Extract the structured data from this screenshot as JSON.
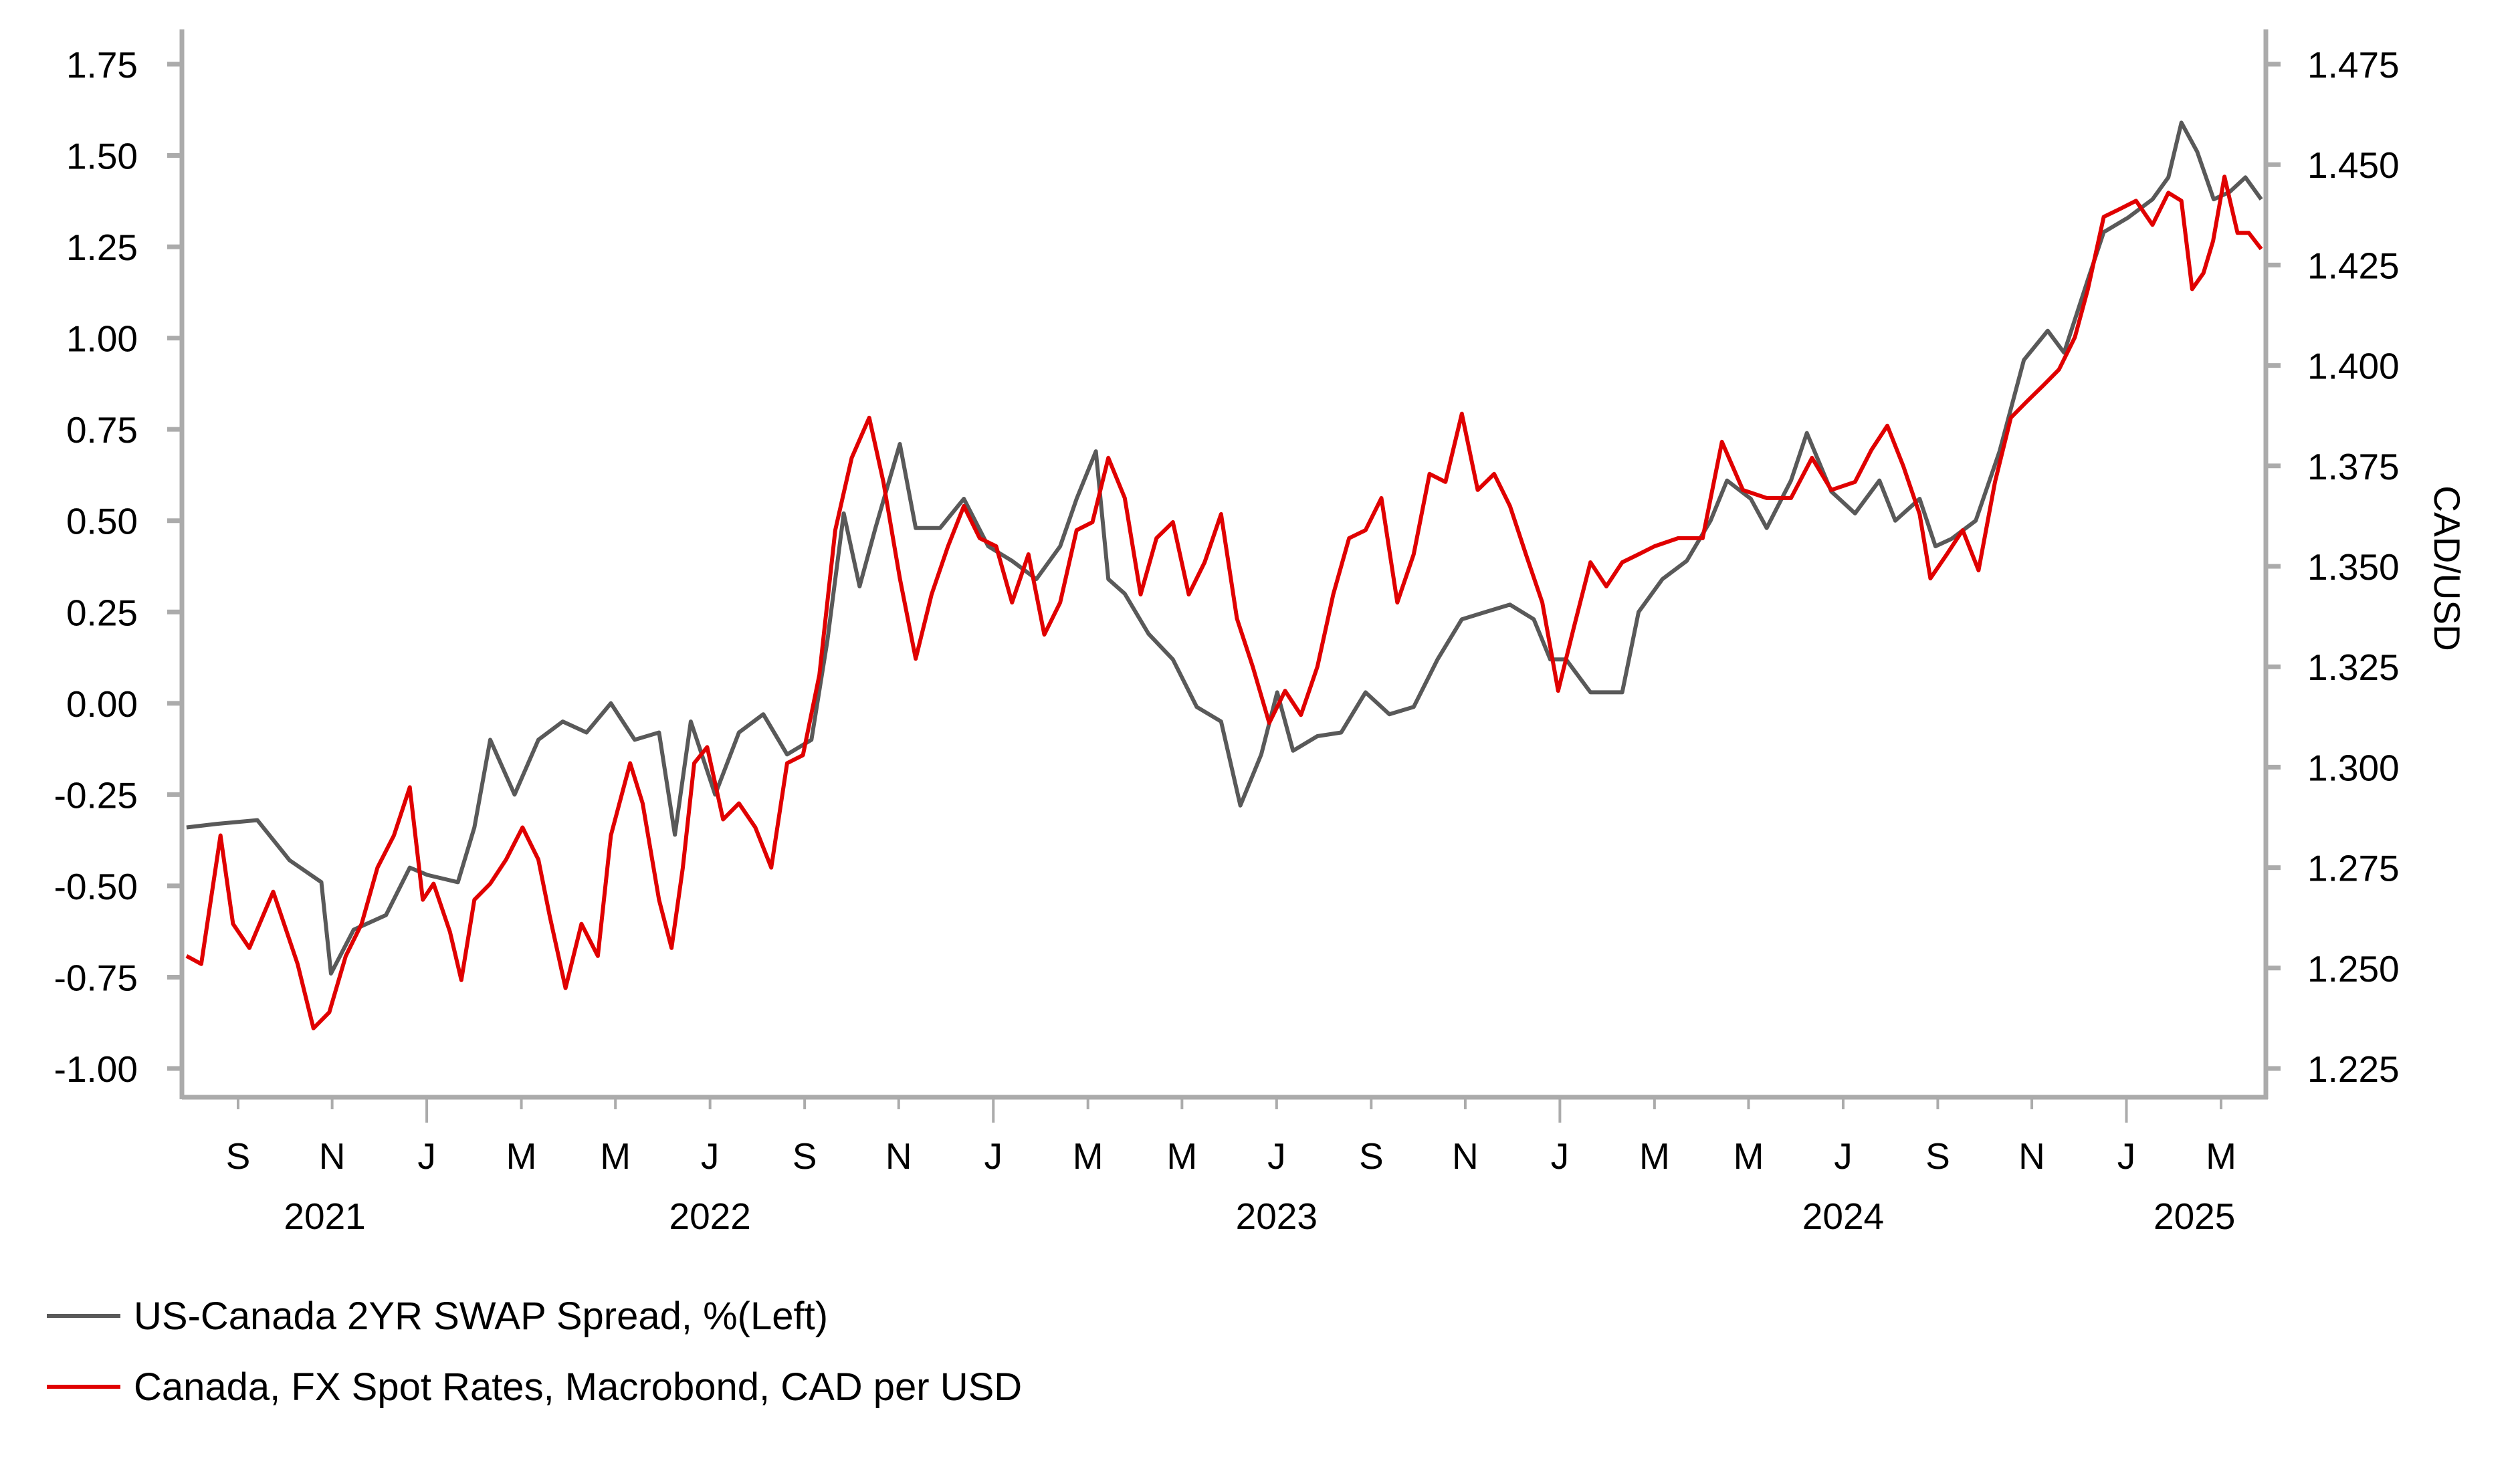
{
  "chart_data": {
    "type": "line",
    "title": "",
    "xlabel": "",
    "ylabel_left": "",
    "ylabel_right": "CAD/USD",
    "x_unit": "decimal year",
    "xlim": [
      2021.57,
      2025.25
    ],
    "ylim_left": [
      -1.08,
      1.85
    ],
    "ylim_right": [
      1.217,
      1.4845
    ],
    "y_ticks_left": [
      "1.75",
      "1.50",
      "1.25",
      "1.00",
      "0.75",
      "0.50",
      "0.25",
      "0.00",
      "-0.25",
      "-0.50",
      "-0.75",
      "-1.00"
    ],
    "y_ticks_left_values": [
      1.75,
      1.5,
      1.25,
      1.0,
      0.75,
      0.5,
      0.25,
      0.0,
      -0.25,
      -0.5,
      -0.75,
      -1.0
    ],
    "y_ticks_right": [
      "1.475",
      "1.450",
      "1.425",
      "1.400",
      "1.375",
      "1.350",
      "1.325",
      "1.300",
      "1.275",
      "1.250",
      "1.225"
    ],
    "y_ticks_right_values": [
      1.475,
      1.45,
      1.425,
      1.4,
      1.375,
      1.35,
      1.325,
      1.3,
      1.275,
      1.25,
      1.225
    ],
    "x_month_ticks": [
      {
        "label": "S",
        "t": 2021.667,
        "major": false
      },
      {
        "label": "N",
        "t": 2021.833,
        "major": false
      },
      {
        "label": "J",
        "t": 2022.0,
        "major": true
      },
      {
        "label": "M",
        "t": 2022.167,
        "major": false
      },
      {
        "label": "M",
        "t": 2022.333,
        "major": false
      },
      {
        "label": "J",
        "t": 2022.5,
        "major": false
      },
      {
        "label": "S",
        "t": 2022.667,
        "major": false
      },
      {
        "label": "N",
        "t": 2022.833,
        "major": false
      },
      {
        "label": "J",
        "t": 2023.0,
        "major": true
      },
      {
        "label": "M",
        "t": 2023.167,
        "major": false
      },
      {
        "label": "M",
        "t": 2023.333,
        "major": false
      },
      {
        "label": "J",
        "t": 2023.5,
        "major": false
      },
      {
        "label": "S",
        "t": 2023.667,
        "major": false
      },
      {
        "label": "N",
        "t": 2023.833,
        "major": false
      },
      {
        "label": "J",
        "t": 2024.0,
        "major": true
      },
      {
        "label": "M",
        "t": 2024.167,
        "major": false
      },
      {
        "label": "M",
        "t": 2024.333,
        "major": false
      },
      {
        "label": "J",
        "t": 2024.5,
        "major": false
      },
      {
        "label": "S",
        "t": 2024.667,
        "major": false
      },
      {
        "label": "N",
        "t": 2024.833,
        "major": false
      },
      {
        "label": "J",
        "t": 2025.0,
        "major": true
      },
      {
        "label": "M",
        "t": 2025.167,
        "major": false
      }
    ],
    "x_year_labels": [
      {
        "label": "2021",
        "t": 2021.82
      },
      {
        "label": "2022",
        "t": 2022.5
      },
      {
        "label": "2023",
        "t": 2023.5
      },
      {
        "label": "2024",
        "t": 2024.5
      },
      {
        "label": "2025",
        "t": 2025.12
      }
    ],
    "grid": false,
    "legend_position": "bottom-left",
    "series": [
      {
        "name": "US-Canada 2YR SWAP Spread, %(Left)",
        "axis": "left",
        "color": "#595959",
        "points": [
          [
            2021.576,
            -0.34
          ],
          [
            2021.63,
            -0.33
          ],
          [
            2021.701,
            -0.32
          ],
          [
            2021.758,
            -0.43
          ],
          [
            2021.814,
            -0.49
          ],
          [
            2021.831,
            -0.74
          ],
          [
            2021.871,
            -0.62
          ],
          [
            2021.928,
            -0.58
          ],
          [
            2021.97,
            -0.45
          ],
          [
            2022.001,
            -0.47
          ],
          [
            2022.055,
            -0.49
          ],
          [
            2022.084,
            -0.34
          ],
          [
            2022.112,
            -0.1
          ],
          [
            2022.155,
            -0.25
          ],
          [
            2022.197,
            -0.1
          ],
          [
            2022.24,
            -0.05
          ],
          [
            2022.282,
            -0.08
          ],
          [
            2022.325,
            0.0
          ],
          [
            2022.367,
            -0.1
          ],
          [
            2022.41,
            -0.08
          ],
          [
            2022.438,
            -0.36
          ],
          [
            2022.466,
            -0.05
          ],
          [
            2022.509,
            -0.25
          ],
          [
            2022.551,
            -0.08
          ],
          [
            2022.594,
            -0.03
          ],
          [
            2022.636,
            -0.14
          ],
          [
            2022.679,
            -0.1
          ],
          [
            2022.707,
            0.17
          ],
          [
            2022.736,
            0.52
          ],
          [
            2022.764,
            0.32
          ],
          [
            2022.792,
            0.48
          ],
          [
            2022.835,
            0.71
          ],
          [
            2022.863,
            0.48
          ],
          [
            2022.906,
            0.48
          ],
          [
            2022.948,
            0.56
          ],
          [
            2022.991,
            0.43
          ],
          [
            2023.033,
            0.39
          ],
          [
            2023.076,
            0.34
          ],
          [
            2023.118,
            0.43
          ],
          [
            2023.147,
            0.56
          ],
          [
            2023.181,
            0.69
          ],
          [
            2023.203,
            0.34
          ],
          [
            2023.232,
            0.3
          ],
          [
            2023.274,
            0.19
          ],
          [
            2023.317,
            0.12
          ],
          [
            2023.359,
            -0.01
          ],
          [
            2023.402,
            -0.05
          ],
          [
            2023.436,
            -0.28
          ],
          [
            2023.473,
            -0.14
          ],
          [
            2023.501,
            0.03
          ],
          [
            2023.529,
            -0.13
          ],
          [
            2023.572,
            -0.09
          ],
          [
            2023.614,
            -0.08
          ],
          [
            2023.657,
            0.03
          ],
          [
            2023.699,
            -0.03
          ],
          [
            2023.742,
            -0.01
          ],
          [
            2023.784,
            0.12
          ],
          [
            2023.827,
            0.23
          ],
          [
            2023.869,
            0.25
          ],
          [
            2023.912,
            0.27
          ],
          [
            2023.954,
            0.23
          ],
          [
            2023.983,
            0.12
          ],
          [
            2024.011,
            0.12
          ],
          [
            2024.054,
            0.03
          ],
          [
            2024.11,
            0.03
          ],
          [
            2024.139,
            0.25
          ],
          [
            2024.181,
            0.34
          ],
          [
            2024.224,
            0.39
          ],
          [
            2024.266,
            0.5
          ],
          [
            2024.295,
            0.61
          ],
          [
            2024.337,
            0.56
          ],
          [
            2024.365,
            0.48
          ],
          [
            2024.408,
            0.61
          ],
          [
            2024.436,
            0.74
          ],
          [
            2024.479,
            0.58
          ],
          [
            2024.521,
            0.52
          ],
          [
            2024.564,
            0.61
          ],
          [
            2024.592,
            0.5
          ],
          [
            2024.635,
            0.56
          ],
          [
            2024.663,
            0.43
          ],
          [
            2024.691,
            0.45
          ],
          [
            2024.734,
            0.5
          ],
          [
            2024.776,
            0.69
          ],
          [
            2024.819,
            0.94
          ],
          [
            2024.861,
            1.02
          ],
          [
            2024.89,
            0.96
          ],
          [
            2024.932,
            1.16
          ],
          [
            2024.96,
            1.29
          ],
          [
            2025.003,
            1.33
          ],
          [
            2025.046,
            1.38
          ],
          [
            2025.074,
            1.44
          ],
          [
            2025.097,
            1.59
          ],
          [
            2025.125,
            1.51
          ],
          [
            2025.154,
            1.38
          ],
          [
            2025.182,
            1.4
          ],
          [
            2025.21,
            1.44
          ],
          [
            2025.238,
            1.38
          ]
        ]
      },
      {
        "name": "Canada, FX Spot Rates, Macrobond, CAD per USD",
        "axis": "right",
        "color": "#e00000",
        "points": [
          [
            2021.576,
            1.253
          ],
          [
            2021.602,
            1.251
          ],
          [
            2021.636,
            1.283
          ],
          [
            2021.658,
            1.261
          ],
          [
            2021.687,
            1.255
          ],
          [
            2021.729,
            1.269
          ],
          [
            2021.772,
            1.251
          ],
          [
            2021.8,
            1.235
          ],
          [
            2021.828,
            1.239
          ],
          [
            2021.857,
            1.253
          ],
          [
            2021.885,
            1.261
          ],
          [
            2021.913,
            1.275
          ],
          [
            2021.942,
            1.283
          ],
          [
            2021.97,
            1.295
          ],
          [
            2021.993,
            1.267
          ],
          [
            2022.012,
            1.271
          ],
          [
            2022.041,
            1.259
          ],
          [
            2022.061,
            1.247
          ],
          [
            2022.084,
            1.267
          ],
          [
            2022.112,
            1.271
          ],
          [
            2022.14,
            1.277
          ],
          [
            2022.169,
            1.285
          ],
          [
            2022.197,
            1.277
          ],
          [
            2022.217,
            1.263
          ],
          [
            2022.245,
            1.245
          ],
          [
            2022.273,
            1.261
          ],
          [
            2022.302,
            1.253
          ],
          [
            2022.325,
            1.283
          ],
          [
            2022.359,
            1.301
          ],
          [
            2022.381,
            1.291
          ],
          [
            2022.41,
            1.267
          ],
          [
            2022.432,
            1.255
          ],
          [
            2022.452,
            1.275
          ],
          [
            2022.472,
            1.301
          ],
          [
            2022.495,
            1.305
          ],
          [
            2022.523,
            1.287
          ],
          [
            2022.551,
            1.291
          ],
          [
            2022.58,
            1.285
          ],
          [
            2022.608,
            1.275
          ],
          [
            2022.636,
            1.301
          ],
          [
            2022.664,
            1.303
          ],
          [
            2022.693,
            1.323
          ],
          [
            2022.721,
            1.359
          ],
          [
            2022.75,
            1.377
          ],
          [
            2022.781,
            1.387
          ],
          [
            2022.806,
            1.371
          ],
          [
            2022.835,
            1.347
          ],
          [
            2022.863,
            1.327
          ],
          [
            2022.891,
            1.343
          ],
          [
            2022.92,
            1.355
          ],
          [
            2022.948,
            1.365
          ],
          [
            2022.976,
            1.357
          ],
          [
            2023.005,
            1.355
          ],
          [
            2023.033,
            1.341
          ],
          [
            2023.062,
            1.353
          ],
          [
            2023.09,
            1.333
          ],
          [
            2023.118,
            1.341
          ],
          [
            2023.147,
            1.359
          ],
          [
            2023.175,
            1.361
          ],
          [
            2023.203,
            1.377
          ],
          [
            2023.232,
            1.367
          ],
          [
            2023.26,
            1.343
          ],
          [
            2023.288,
            1.357
          ],
          [
            2023.317,
            1.361
          ],
          [
            2023.345,
            1.343
          ],
          [
            2023.373,
            1.351
          ],
          [
            2023.402,
            1.363
          ],
          [
            2023.43,
            1.337
          ],
          [
            2023.458,
            1.325
          ],
          [
            2023.487,
            1.311
          ],
          [
            2023.515,
            1.319
          ],
          [
            2023.543,
            1.313
          ],
          [
            2023.572,
            1.325
          ],
          [
            2023.6,
            1.343
          ],
          [
            2023.628,
            1.357
          ],
          [
            2023.657,
            1.359
          ],
          [
            2023.685,
            1.367
          ],
          [
            2023.713,
            1.341
          ],
          [
            2023.742,
            1.353
          ],
          [
            2023.77,
            1.373
          ],
          [
            2023.798,
            1.371
          ],
          [
            2023.827,
            1.388
          ],
          [
            2023.855,
            1.369
          ],
          [
            2023.884,
            1.373
          ],
          [
            2023.912,
            1.365
          ],
          [
            2023.94,
            1.353
          ],
          [
            2023.969,
            1.341
          ],
          [
            2023.997,
            1.319
          ],
          [
            2024.025,
            1.335
          ],
          [
            2024.054,
            1.351
          ],
          [
            2024.082,
            1.345
          ],
          [
            2024.11,
            1.351
          ],
          [
            2024.139,
            1.353
          ],
          [
            2024.167,
            1.355
          ],
          [
            2024.209,
            1.357
          ],
          [
            2024.252,
            1.357
          ],
          [
            2024.286,
            1.381
          ],
          [
            2024.323,
            1.369
          ],
          [
            2024.365,
            1.367
          ],
          [
            2024.408,
            1.367
          ],
          [
            2024.445,
            1.377
          ],
          [
            2024.479,
            1.369
          ],
          [
            2024.521,
            1.371
          ],
          [
            2024.55,
            1.379
          ],
          [
            2024.578,
            1.385
          ],
          [
            2024.606,
            1.375
          ],
          [
            2024.635,
            1.363
          ],
          [
            2024.654,
            1.347
          ],
          [
            2024.683,
            1.353
          ],
          [
            2024.711,
            1.359
          ],
          [
            2024.739,
            1.349
          ],
          [
            2024.768,
            1.371
          ],
          [
            2024.796,
            1.387
          ],
          [
            2024.824,
            1.391
          ],
          [
            2024.853,
            1.395
          ],
          [
            2024.881,
            1.399
          ],
          [
            2024.909,
            1.407
          ],
          [
            2024.932,
            1.419
          ],
          [
            2024.96,
            1.437
          ],
          [
            2024.989,
            1.439
          ],
          [
            2025.017,
            1.441
          ],
          [
            2025.046,
            1.435
          ],
          [
            2025.074,
            1.443
          ],
          [
            2025.097,
            1.441
          ],
          [
            2025.116,
            1.419
          ],
          [
            2025.136,
            1.423
          ],
          [
            2025.153,
            1.431
          ],
          [
            2025.173,
            1.447
          ],
          [
            2025.196,
            1.433
          ],
          [
            2025.216,
            1.433
          ],
          [
            2025.238,
            1.429
          ]
        ]
      }
    ]
  },
  "legend": {
    "items": [
      {
        "label": "US-Canada 2YR SWAP Spread, %(Left)",
        "color": "#595959"
      },
      {
        "label": "Canada, FX Spot Rates, Macrobond, CAD per USD",
        "color": "#e00000"
      }
    ]
  }
}
